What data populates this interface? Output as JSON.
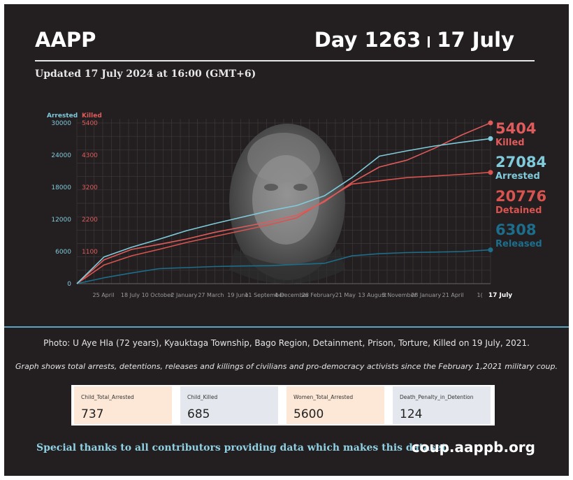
{
  "header": {
    "org": "AAPP",
    "day": "Day 1263",
    "date": "17 July",
    "updated": "Updated 17 July 2024 at 16:00 (GMT+6)"
  },
  "colors": {
    "background": "#231f20",
    "arrested": "#7fcbdb",
    "killed": "#e05b5b",
    "detained": "#d9534f",
    "released": "#1d6e8c",
    "accent_rule": "#5aa5c0"
  },
  "chart_data": {
    "type": "line",
    "y_left_label": "Arrested",
    "y_right_label": "Killed",
    "y_left_ticks": [
      "30000",
      "24000",
      "18000",
      "12000",
      "6000",
      "0"
    ],
    "y_right_ticks": [
      "5400",
      "4300",
      "3200",
      "2200",
      "1100"
    ],
    "ylim_left": [
      0,
      30000
    ],
    "ylim_right": [
      0,
      5400
    ],
    "x_ticks": [
      "25 April",
      "18 July",
      "10 October",
      "2 January",
      "27 March",
      "19 June",
      "11 September",
      "4 December",
      "26 February",
      "21 May",
      "13 August",
      "5 November",
      "28 January",
      "21 April",
      "1(",
      "17 July"
    ],
    "x": [
      "2021-02-01",
      "2021-04-25",
      "2021-07-18",
      "2021-10-10",
      "2022-01-02",
      "2022-03-27",
      "2022-06-19",
      "2022-09-11",
      "2022-12-04",
      "2023-02-26",
      "2023-05-21",
      "2023-08-13",
      "2023-11-05",
      "2024-01-28",
      "2024-04-21",
      "2024-07-17"
    ],
    "series": [
      {
        "name": "Arrested",
        "axis": "left",
        "color": "#7fcbdb",
        "values": [
          0,
          5000,
          6800,
          8300,
          9900,
          11200,
          12400,
          13600,
          14600,
          16400,
          19800,
          23800,
          24800,
          25700,
          26400,
          27084
        ]
      },
      {
        "name": "Killed",
        "axis": "right",
        "color": "#e05b5b",
        "values": [
          0,
          800,
          1150,
          1320,
          1500,
          1720,
          1900,
          2080,
          2300,
          2750,
          3400,
          3920,
          4150,
          4550,
          5000,
          5404
        ]
      },
      {
        "name": "Detained",
        "axis": "left",
        "color": "#d9534f",
        "values": [
          0,
          3500,
          5200,
          6400,
          7700,
          8800,
          9900,
          11000,
          12300,
          15500,
          18600,
          19200,
          19800,
          20100,
          20400,
          20776
        ]
      },
      {
        "name": "Released",
        "axis": "left",
        "color": "#1d6e8c",
        "values": [
          0,
          1100,
          2000,
          2800,
          3000,
          3200,
          3300,
          3350,
          3600,
          3800,
          5200,
          5600,
          5800,
          5900,
          6000,
          6308
        ]
      }
    ],
    "end_labels": [
      {
        "value": "5404",
        "label": "Killed",
        "color": "#e05b5b"
      },
      {
        "value": "27084",
        "label": "Arrested",
        "color": "#7fcbdb"
      },
      {
        "value": "20776",
        "label": "Detained",
        "color": "#d9534f"
      },
      {
        "value": "6308",
        "label": "Released",
        "color": "#1d6e8c"
      }
    ],
    "grid": true
  },
  "photo_caption": "Photo: U Aye Hla (72 years), Kyauktaga Township, Bago Region, Detainment, Prison, Torture, Killed on 19 July, 2021.",
  "graph_note": "Graph shows total arrests, detentions, releases and killings of civilians and pro-democracy activists since the February 1,2021 military coup.",
  "stats": [
    {
      "label": "Child_Total_Arrested",
      "value": "737",
      "bg": "#fde8d7"
    },
    {
      "label": "Child_Killed",
      "value": "685",
      "bg": "#e4e8ee"
    },
    {
      "label": "Women_Total_Arrested",
      "value": "5600",
      "bg": "#fde8d7"
    },
    {
      "label": "Death_Penalty_in_Detention",
      "value": "124",
      "bg": "#e4e8ee"
    }
  ],
  "footer": {
    "thanks": "Special thanks to all contributors providing data which makes this dataset.",
    "site": "coup.aappb.org"
  }
}
